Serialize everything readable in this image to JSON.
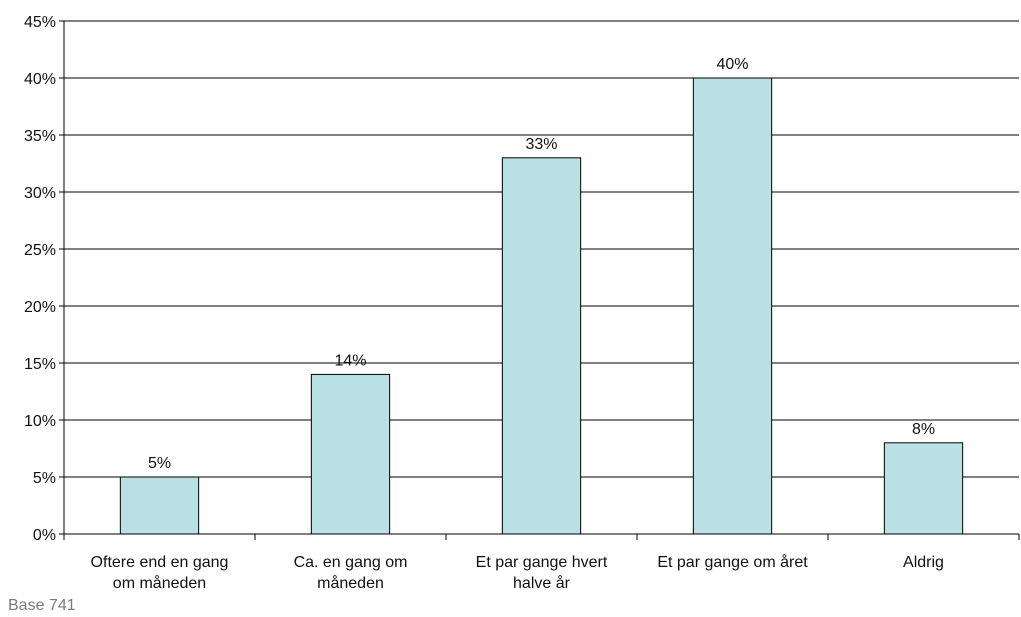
{
  "chart_data": {
    "type": "bar",
    "categories": [
      [
        "Oftere end en gang",
        "om måneden"
      ],
      [
        "Ca. en gang om",
        "måneden"
      ],
      [
        "Et par gange hvert",
        "halve år"
      ],
      [
        "Et par gange om året"
      ],
      [
        "Aldrig"
      ]
    ],
    "values": [
      5,
      14,
      33,
      40,
      8
    ],
    "data_labels": [
      "5%",
      "14%",
      "33%",
      "40%",
      "8%"
    ],
    "y_ticks": [
      "0%",
      "5%",
      "10%",
      "15%",
      "20%",
      "25%",
      "30%",
      "35%",
      "40%",
      "45%"
    ],
    "ylim": [
      0,
      45
    ],
    "grid": true,
    "legend": "none",
    "bar_color": "#b9e0e3",
    "bar_edge_color": "#000000",
    "gridline_color": "#000000"
  },
  "footnote": "Base 741"
}
